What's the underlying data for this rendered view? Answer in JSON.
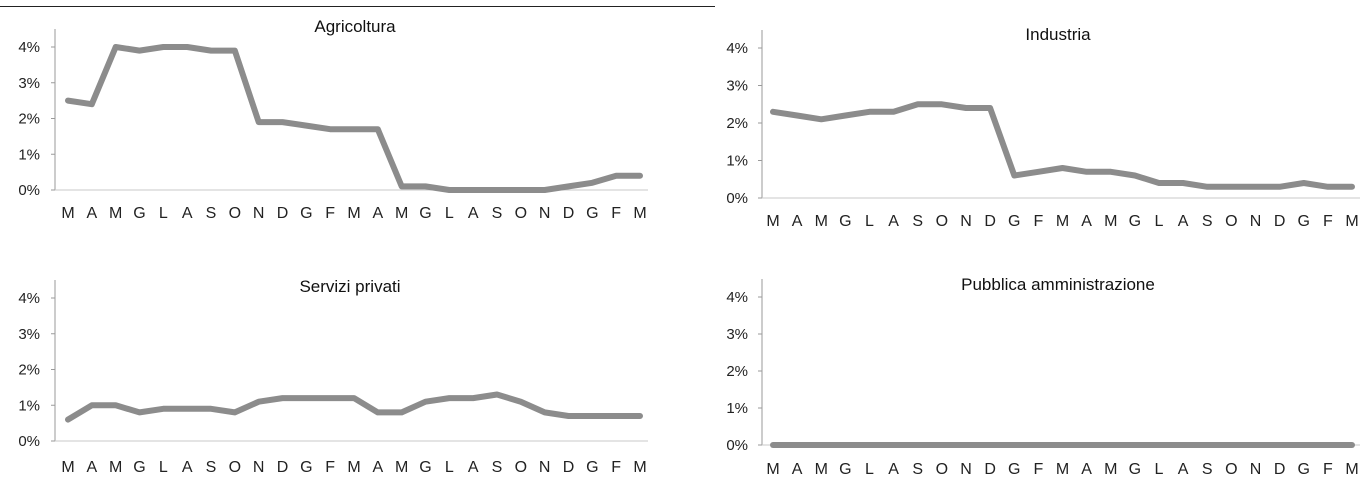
{
  "chart_data": [
    {
      "type": "line",
      "title": "Agricoltura",
      "categories": [
        "M",
        "A",
        "M",
        "G",
        "L",
        "A",
        "S",
        "O",
        "N",
        "D",
        "G",
        "F",
        "M",
        "A",
        "M",
        "G",
        "L",
        "A",
        "S",
        "O",
        "N",
        "D",
        "G",
        "F",
        "M"
      ],
      "y_tick_labels": [
        "0%",
        "1%",
        "2%",
        "3%",
        "4%"
      ],
      "ylim": [
        0,
        4.5
      ],
      "grid": false,
      "values": [
        2.5,
        2.4,
        4.0,
        3.9,
        4.0,
        4.0,
        3.9,
        3.9,
        1.9,
        1.9,
        1.8,
        1.7,
        1.7,
        1.7,
        0.1,
        0.1,
        0.0,
        0.0,
        0.0,
        0.0,
        0.0,
        0.1,
        0.2,
        0.4,
        0.4
      ],
      "color": "#8c8c8c"
    },
    {
      "type": "line",
      "title": "Industria",
      "categories": [
        "M",
        "A",
        "M",
        "G",
        "L",
        "A",
        "S",
        "O",
        "N",
        "D",
        "G",
        "F",
        "M",
        "A",
        "M",
        "G",
        "L",
        "A",
        "S",
        "O",
        "N",
        "D",
        "G",
        "F",
        "M"
      ],
      "y_tick_labels": [
        "0%",
        "1%",
        "2%",
        "3%",
        "4%"
      ],
      "ylim": [
        0,
        4.5
      ],
      "grid": false,
      "values": [
        2.3,
        2.2,
        2.1,
        2.2,
        2.3,
        2.3,
        2.5,
        2.5,
        2.4,
        2.4,
        0.6,
        0.7,
        0.8,
        0.7,
        0.7,
        0.6,
        0.4,
        0.4,
        0.3,
        0.3,
        0.3,
        0.3,
        0.4,
        0.3,
        0.3
      ],
      "color": "#8c8c8c"
    },
    {
      "type": "line",
      "title": "Servizi privati",
      "categories": [
        "M",
        "A",
        "M",
        "G",
        "L",
        "A",
        "S",
        "O",
        "N",
        "D",
        "G",
        "F",
        "M",
        "A",
        "M",
        "G",
        "L",
        "A",
        "S",
        "O",
        "N",
        "D",
        "G",
        "F",
        "M"
      ],
      "y_tick_labels": [
        "0%",
        "1%",
        "2%",
        "3%",
        "4%"
      ],
      "ylim": [
        0,
        4.5
      ],
      "grid": false,
      "values": [
        0.6,
        1.0,
        1.0,
        0.8,
        0.9,
        0.9,
        0.9,
        0.8,
        1.1,
        1.2,
        1.2,
        1.2,
        1.2,
        0.8,
        0.8,
        1.1,
        1.2,
        1.2,
        1.3,
        1.1,
        0.8,
        0.7,
        0.7,
        0.7,
        0.7
      ],
      "color": "#8c8c8c"
    },
    {
      "type": "line",
      "title": "Pubblica amministrazione",
      "categories": [
        "M",
        "A",
        "M",
        "G",
        "L",
        "A",
        "S",
        "O",
        "N",
        "D",
        "G",
        "F",
        "M",
        "A",
        "M",
        "G",
        "L",
        "A",
        "S",
        "O",
        "N",
        "D",
        "G",
        "F",
        "M"
      ],
      "y_tick_labels": [
        "0%",
        "1%",
        "2%",
        "3%",
        "4%"
      ],
      "ylim": [
        0,
        4.5
      ],
      "grid": false,
      "values": [
        0,
        0,
        0,
        0,
        0,
        0,
        0,
        0,
        0,
        0,
        0,
        0,
        0,
        0,
        0,
        0,
        0,
        0,
        0,
        0,
        0,
        0,
        0,
        0,
        0
      ],
      "color": "#8c8c8c"
    }
  ]
}
